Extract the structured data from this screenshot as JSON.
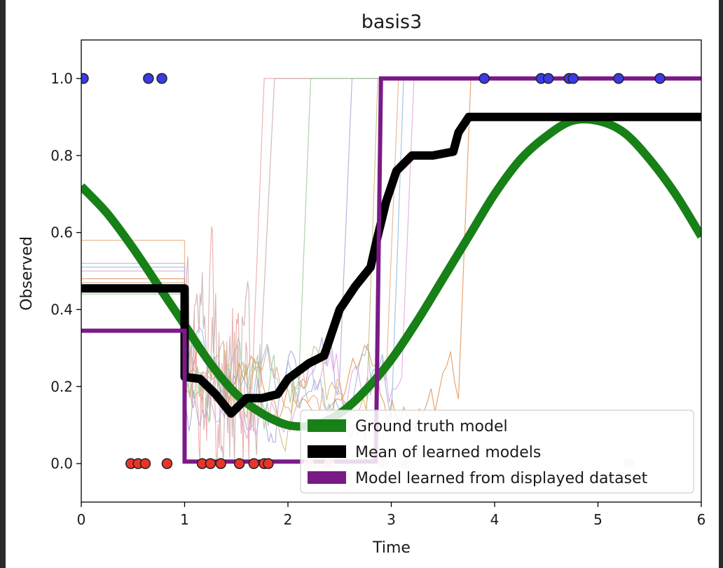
{
  "chart_data": {
    "type": "line",
    "title": "basis3",
    "xlabel": "Time",
    "ylabel": "Observed",
    "xlim": [
      0,
      6
    ],
    "ylim": [
      -0.1,
      1.1
    ],
    "xticks": [
      0,
      1,
      2,
      3,
      4,
      5,
      6
    ],
    "yticks": [
      0.0,
      0.2,
      0.4,
      0.6,
      0.8,
      1.0
    ],
    "xtick_labels": [
      "0",
      "1",
      "2",
      "3",
      "4",
      "5",
      "6"
    ],
    "ytick_labels": [
      "0.0",
      "0.2",
      "0.4",
      "0.6",
      "0.8",
      "1.0"
    ],
    "legend_position": "lower-right",
    "colors": {
      "ground_truth": "#178017",
      "mean": "#000000",
      "learned": "#7a1a86",
      "obs_one": "#3a3ae8",
      "obs_zero": "#e8352a"
    },
    "series": [
      {
        "name": "Ground truth model",
        "color": "#178017",
        "x": [
          0,
          0.25,
          0.5,
          0.75,
          1,
          1.25,
          1.5,
          1.75,
          2,
          2.25,
          2.5,
          2.75,
          3,
          3.25,
          3.5,
          3.75,
          4,
          4.25,
          4.5,
          4.75,
          5,
          5.25,
          5.5,
          5.75,
          6
        ],
        "y": [
          0.72,
          0.65,
          0.56,
          0.46,
          0.36,
          0.26,
          0.18,
          0.13,
          0.1,
          0.1,
          0.13,
          0.19,
          0.27,
          0.37,
          0.48,
          0.59,
          0.7,
          0.79,
          0.85,
          0.89,
          0.89,
          0.86,
          0.79,
          0.7,
          0.59
        ]
      },
      {
        "name": "Mean of learned models",
        "color": "#000000",
        "x": [
          0,
          1,
          1,
          1.15,
          1.3,
          1.45,
          1.6,
          1.75,
          1.9,
          2.0,
          2.1,
          2.2,
          2.35,
          2.5,
          2.65,
          2.8,
          2.85,
          2.95,
          3.05,
          3.2,
          3.4,
          3.6,
          3.65,
          3.75,
          3.9,
          4.2,
          6
        ],
        "y": [
          0.455,
          0.455,
          0.225,
          0.22,
          0.18,
          0.13,
          0.17,
          0.17,
          0.18,
          0.22,
          0.24,
          0.26,
          0.28,
          0.4,
          0.46,
          0.51,
          0.57,
          0.68,
          0.76,
          0.8,
          0.8,
          0.81,
          0.86,
          0.9,
          0.9,
          0.9,
          0.9
        ]
      },
      {
        "name": "Model learned from displayed dataset",
        "color": "#7a1a86",
        "x": [
          0,
          1,
          1,
          2.85,
          2.9,
          6
        ],
        "y": [
          0.345,
          0.345,
          0.005,
          0.005,
          1.0,
          1.0
        ]
      }
    ],
    "background_series_colors": [
      "#e8a878",
      "#e8a0a0",
      "#8ab8e0",
      "#a8a0d8",
      "#c8a8a8",
      "#c8b870",
      "#98c898",
      "#e0a0e0",
      "#e09050"
    ],
    "observations_one_x": [
      0.02,
      0.65,
      0.78,
      3.9,
      4.45,
      4.52,
      4.72,
      4.76,
      5.2,
      5.6
    ],
    "observations_zero_x": [
      0.48,
      0.55,
      0.62,
      0.83,
      1.17,
      1.25,
      1.35,
      1.53,
      1.67,
      1.77,
      1.81
    ],
    "observations_zero_faded_x": [
      2.2,
      2.4,
      2.92,
      3.13,
      5.3
    ]
  }
}
